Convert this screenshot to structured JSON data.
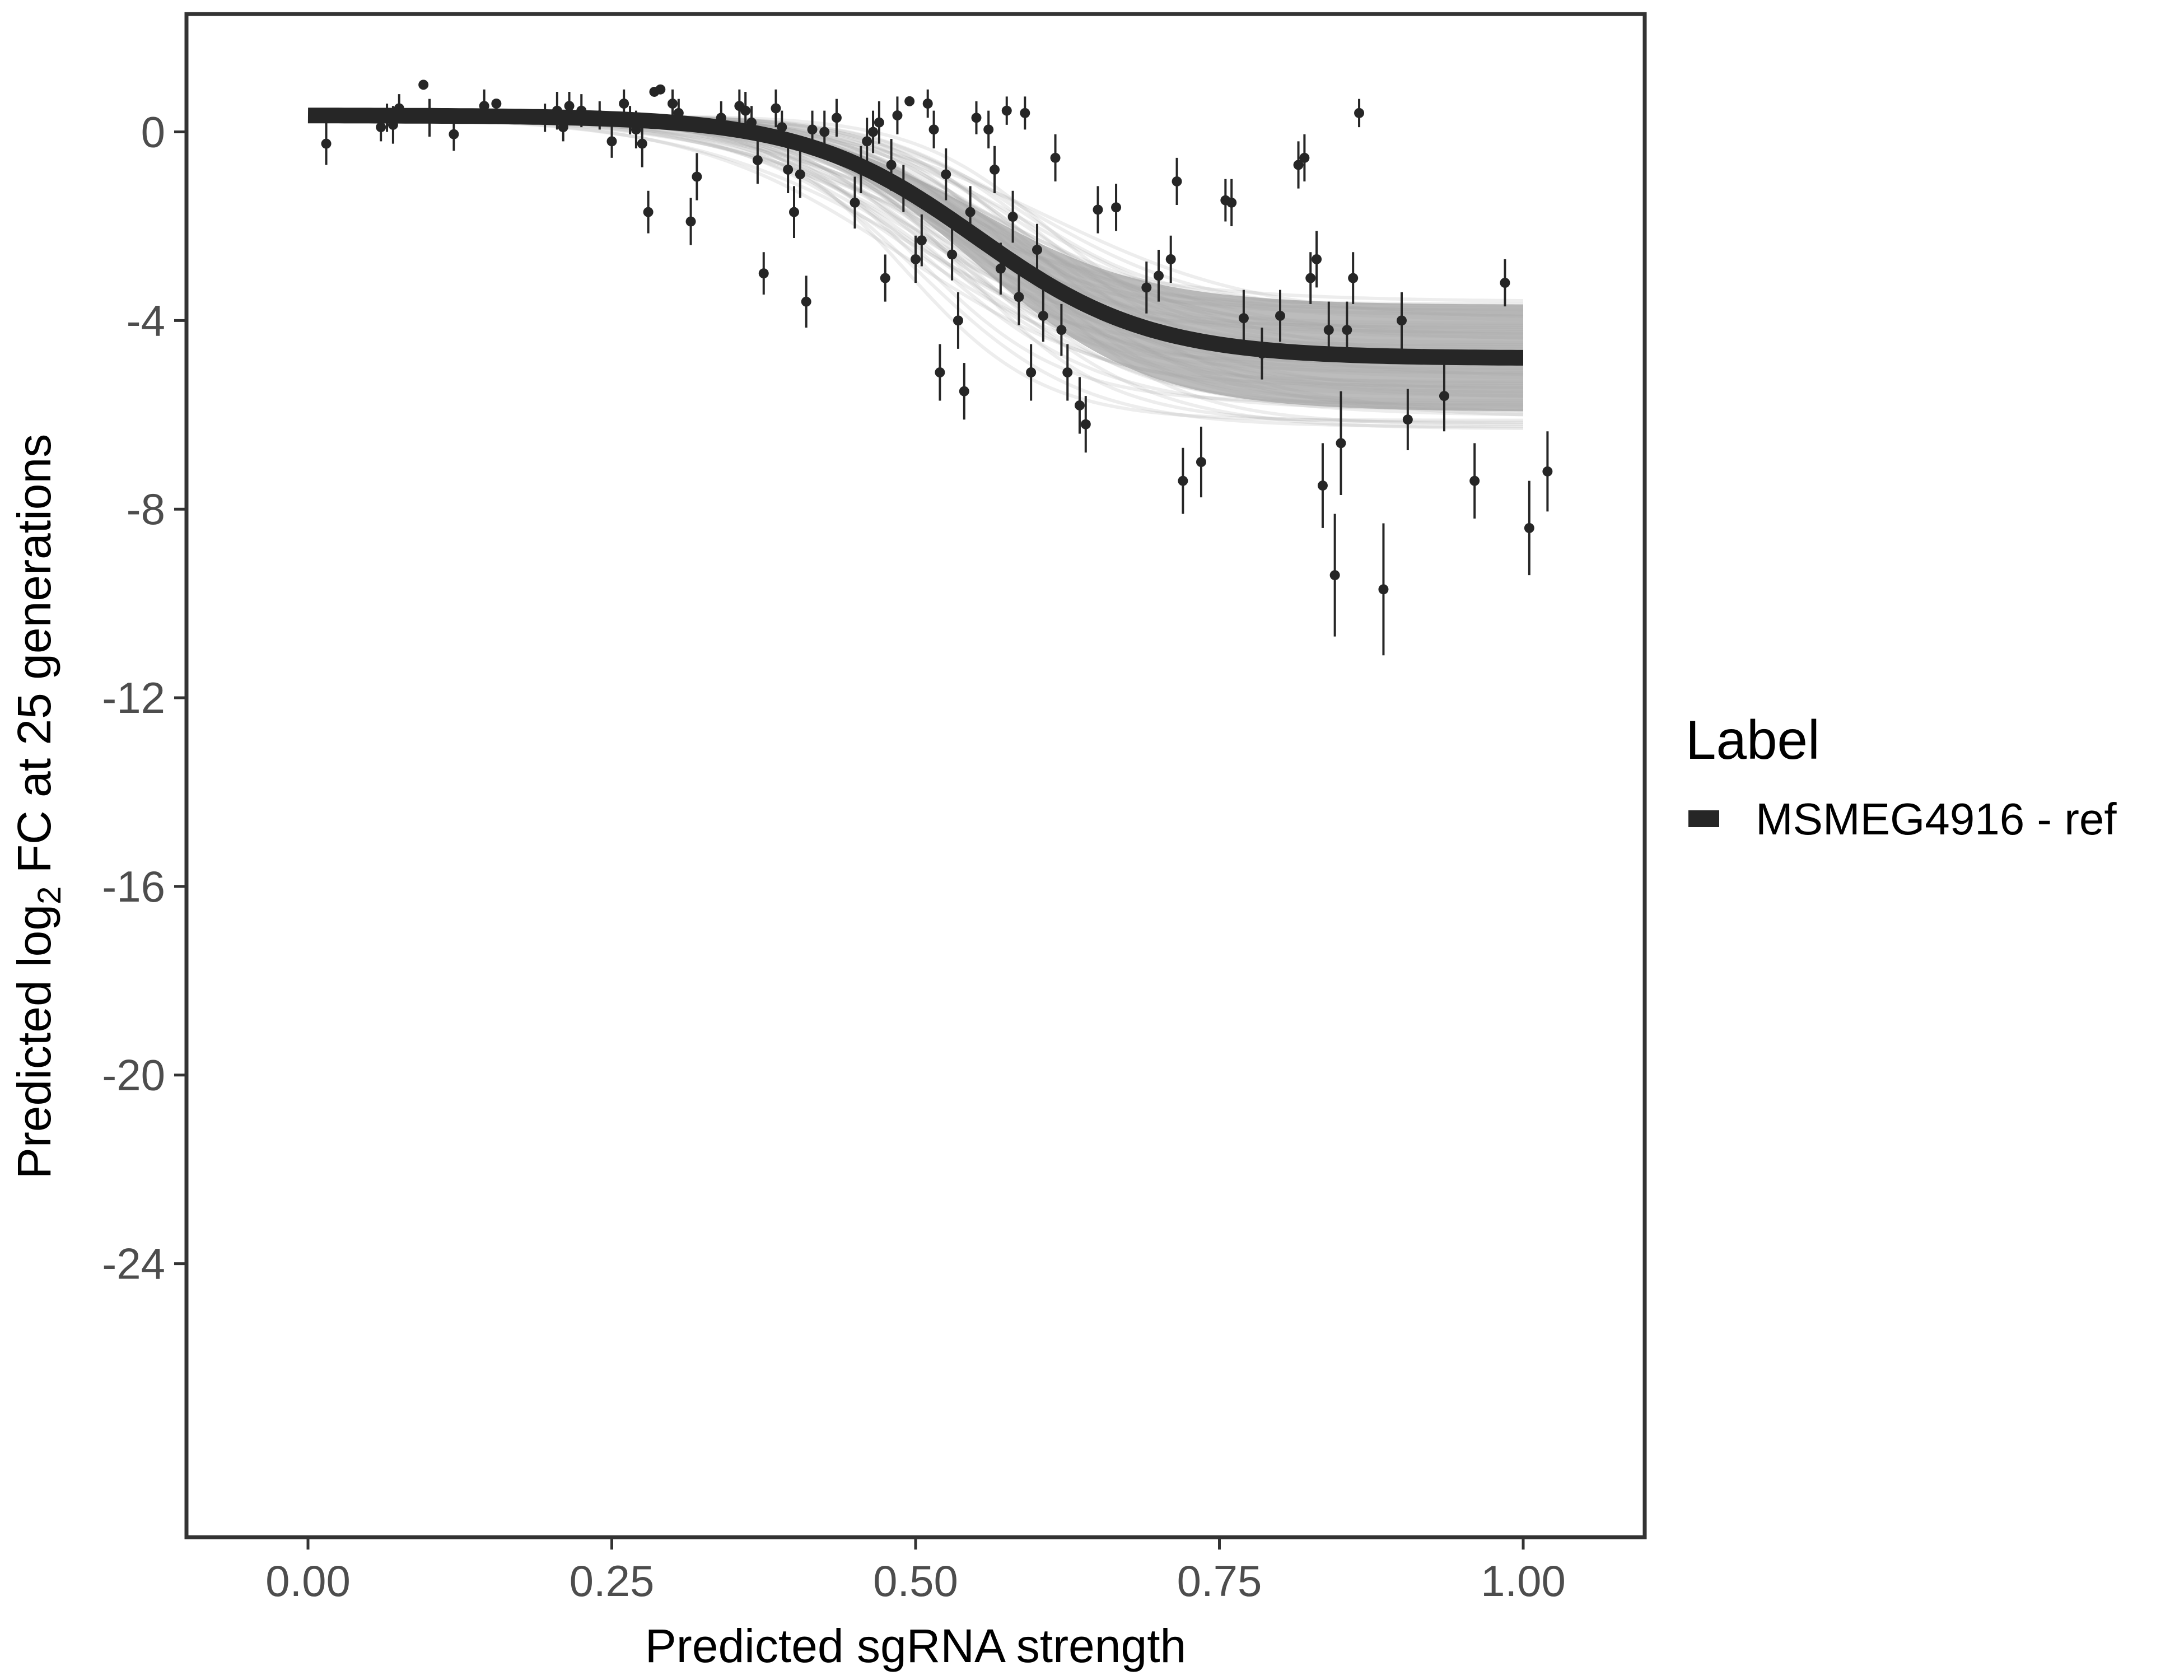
{
  "chart_data": {
    "type": "scatter",
    "xlabel": "Predicted sgRNA strength",
    "ylabel": {
      "prefix": "Predicted  log",
      "subscript": "2",
      "suffix": " FC at 25 generations"
    },
    "xlim": [
      -0.1,
      1.1
    ],
    "ylim": [
      -29.8,
      2.5
    ],
    "x_ticks": [
      {
        "value": 0.0,
        "label": "0.00"
      },
      {
        "value": 0.25,
        "label": "0.25"
      },
      {
        "value": 0.5,
        "label": "0.50"
      },
      {
        "value": 0.75,
        "label": "0.75"
      },
      {
        "value": 1.0,
        "label": "1.00"
      }
    ],
    "y_ticks": [
      {
        "value": 0,
        "label": "0"
      },
      {
        "value": -4,
        "label": "-4"
      },
      {
        "value": -8,
        "label": "-8"
      },
      {
        "value": -12,
        "label": "-12"
      },
      {
        "value": -16,
        "label": "-16"
      },
      {
        "value": -20,
        "label": "-20"
      },
      {
        "value": -24,
        "label": "-24"
      }
    ],
    "grid": false,
    "legend": {
      "title": "Label",
      "position": "right",
      "entries": [
        {
          "label": "MSMEG4916 - ref",
          "color": "#262626"
        }
      ]
    },
    "fit_curve": {
      "name": "MSMEG4916 - ref",
      "model": "logistic",
      "upper": 0.35,
      "lower": -4.8,
      "midpoint": 0.55,
      "slope": 14,
      "x_range": [
        0.0,
        1.0
      ],
      "band_upper": -3.6,
      "band_lower": -6.3
    },
    "points": [
      {
        "x": 0.015,
        "y": -0.25,
        "err": 0.45
      },
      {
        "x": 0.06,
        "y": 0.1,
        "err": 0.3
      },
      {
        "x": 0.065,
        "y": 0.3,
        "err": 0.3
      },
      {
        "x": 0.07,
        "y": 0.15,
        "err": 0.4
      },
      {
        "x": 0.075,
        "y": 0.5,
        "err": 0.3
      },
      {
        "x": 0.095,
        "y": 1.0,
        "err": 0.1
      },
      {
        "x": 0.1,
        "y": 0.3,
        "err": 0.4
      },
      {
        "x": 0.12,
        "y": -0.05,
        "err": 0.35
      },
      {
        "x": 0.145,
        "y": 0.55,
        "err": 0.35
      },
      {
        "x": 0.155,
        "y": 0.6,
        "err": 0.1
      },
      {
        "x": 0.195,
        "y": 0.3,
        "err": 0.3
      },
      {
        "x": 0.205,
        "y": 0.45,
        "err": 0.4
      },
      {
        "x": 0.21,
        "y": 0.1,
        "err": 0.3
      },
      {
        "x": 0.215,
        "y": 0.55,
        "err": 0.3
      },
      {
        "x": 0.225,
        "y": 0.45,
        "err": 0.35
      },
      {
        "x": 0.24,
        "y": 0.35,
        "err": 0.3
      },
      {
        "x": 0.25,
        "y": -0.2,
        "err": 0.35
      },
      {
        "x": 0.26,
        "y": 0.6,
        "err": 0.3
      },
      {
        "x": 0.265,
        "y": 0.25,
        "err": 0.3
      },
      {
        "x": 0.27,
        "y": 0.05,
        "err": 0.4
      },
      {
        "x": 0.275,
        "y": -0.25,
        "err": 0.5
      },
      {
        "x": 0.28,
        "y": -1.7,
        "err": 0.45
      },
      {
        "x": 0.285,
        "y": 0.85,
        "err": 0.1
      },
      {
        "x": 0.29,
        "y": 0.9,
        "err": 0.1
      },
      {
        "x": 0.3,
        "y": 0.6,
        "err": 0.3
      },
      {
        "x": 0.305,
        "y": 0.4,
        "err": 0.3
      },
      {
        "x": 0.315,
        "y": -1.9,
        "err": 0.5
      },
      {
        "x": 0.32,
        "y": -0.95,
        "err": 0.5
      },
      {
        "x": 0.34,
        "y": 0.3,
        "err": 0.35
      },
      {
        "x": 0.355,
        "y": 0.55,
        "err": 0.35
      },
      {
        "x": 0.36,
        "y": 0.45,
        "err": 0.4
      },
      {
        "x": 0.365,
        "y": 0.2,
        "err": 0.35
      },
      {
        "x": 0.37,
        "y": -0.6,
        "err": 0.5
      },
      {
        "x": 0.375,
        "y": -3.0,
        "err": 0.45
      },
      {
        "x": 0.385,
        "y": 0.5,
        "err": 0.4
      },
      {
        "x": 0.39,
        "y": 0.1,
        "err": 0.35
      },
      {
        "x": 0.395,
        "y": -0.8,
        "err": 0.5
      },
      {
        "x": 0.4,
        "y": -1.7,
        "err": 0.55
      },
      {
        "x": 0.405,
        "y": -0.9,
        "err": 0.5
      },
      {
        "x": 0.41,
        "y": -3.6,
        "err": 0.55
      },
      {
        "x": 0.415,
        "y": 0.05,
        "err": 0.4
      },
      {
        "x": 0.425,
        "y": 0.0,
        "err": 0.45
      },
      {
        "x": 0.435,
        "y": 0.3,
        "err": 0.4
      },
      {
        "x": 0.45,
        "y": -1.5,
        "err": 0.55
      },
      {
        "x": 0.455,
        "y": -0.8,
        "err": 0.5
      },
      {
        "x": 0.46,
        "y": -0.2,
        "err": 0.5
      },
      {
        "x": 0.465,
        "y": 0.0,
        "err": 0.45
      },
      {
        "x": 0.47,
        "y": 0.2,
        "err": 0.45
      },
      {
        "x": 0.475,
        "y": -3.1,
        "err": 0.5
      },
      {
        "x": 0.48,
        "y": -0.7,
        "err": 0.55
      },
      {
        "x": 0.485,
        "y": 0.35,
        "err": 0.4
      },
      {
        "x": 0.49,
        "y": -1.2,
        "err": 0.5
      },
      {
        "x": 0.495,
        "y": 0.65,
        "err": 0.1
      },
      {
        "x": 0.5,
        "y": -2.7,
        "err": 0.5
      },
      {
        "x": 0.505,
        "y": -2.3,
        "err": 0.55
      },
      {
        "x": 0.51,
        "y": 0.6,
        "err": 0.3
      },
      {
        "x": 0.515,
        "y": 0.05,
        "err": 0.4
      },
      {
        "x": 0.52,
        "y": -5.1,
        "err": 0.6
      },
      {
        "x": 0.525,
        "y": -0.9,
        "err": 0.55
      },
      {
        "x": 0.53,
        "y": -2.6,
        "err": 0.55
      },
      {
        "x": 0.535,
        "y": -4.0,
        "err": 0.6
      },
      {
        "x": 0.54,
        "y": -5.5,
        "err": 0.6
      },
      {
        "x": 0.545,
        "y": -1.7,
        "err": 0.55
      },
      {
        "x": 0.55,
        "y": 0.3,
        "err": 0.35
      },
      {
        "x": 0.56,
        "y": 0.05,
        "err": 0.4
      },
      {
        "x": 0.565,
        "y": -0.8,
        "err": 0.5
      },
      {
        "x": 0.57,
        "y": -2.9,
        "err": 0.55
      },
      {
        "x": 0.575,
        "y": 0.45,
        "err": 0.3
      },
      {
        "x": 0.58,
        "y": -1.8,
        "err": 0.55
      },
      {
        "x": 0.585,
        "y": -3.5,
        "err": 0.6
      },
      {
        "x": 0.59,
        "y": 0.4,
        "err": 0.35
      },
      {
        "x": 0.595,
        "y": -5.1,
        "err": 0.6
      },
      {
        "x": 0.6,
        "y": -2.5,
        "err": 0.55
      },
      {
        "x": 0.605,
        "y": -3.9,
        "err": 0.55
      },
      {
        "x": 0.615,
        "y": -0.55,
        "err": 0.5
      },
      {
        "x": 0.62,
        "y": -4.2,
        "err": 0.55
      },
      {
        "x": 0.625,
        "y": -5.1,
        "err": 0.6
      },
      {
        "x": 0.635,
        "y": -5.8,
        "err": 0.6
      },
      {
        "x": 0.64,
        "y": -6.2,
        "err": 0.6
      },
      {
        "x": 0.65,
        "y": -1.65,
        "err": 0.5
      },
      {
        "x": 0.665,
        "y": -1.6,
        "err": 0.5
      },
      {
        "x": 0.69,
        "y": -3.3,
        "err": 0.55
      },
      {
        "x": 0.7,
        "y": -3.05,
        "err": 0.55
      },
      {
        "x": 0.71,
        "y": -2.7,
        "err": 0.5
      },
      {
        "x": 0.715,
        "y": -1.05,
        "err": 0.5
      },
      {
        "x": 0.72,
        "y": -7.4,
        "err": 0.7
      },
      {
        "x": 0.735,
        "y": -7.0,
        "err": 0.75
      },
      {
        "x": 0.755,
        "y": -1.45,
        "err": 0.45
      },
      {
        "x": 0.76,
        "y": -1.5,
        "err": 0.5
      },
      {
        "x": 0.77,
        "y": -3.95,
        "err": 0.6
      },
      {
        "x": 0.785,
        "y": -4.7,
        "err": 0.55
      },
      {
        "x": 0.8,
        "y": -3.9,
        "err": 0.55
      },
      {
        "x": 0.815,
        "y": -0.7,
        "err": 0.5
      },
      {
        "x": 0.82,
        "y": -0.55,
        "err": 0.5
      },
      {
        "x": 0.825,
        "y": -3.1,
        "err": 0.55
      },
      {
        "x": 0.83,
        "y": -2.7,
        "err": 0.6
      },
      {
        "x": 0.835,
        "y": -7.5,
        "err": 0.9
      },
      {
        "x": 0.84,
        "y": -4.2,
        "err": 0.6
      },
      {
        "x": 0.845,
        "y": -9.4,
        "err": 1.3
      },
      {
        "x": 0.85,
        "y": -6.6,
        "err": 1.1
      },
      {
        "x": 0.855,
        "y": -4.2,
        "err": 0.6
      },
      {
        "x": 0.86,
        "y": -3.1,
        "err": 0.55
      },
      {
        "x": 0.865,
        "y": 0.4,
        "err": 0.3
      },
      {
        "x": 0.885,
        "y": -9.7,
        "err": 1.4
      },
      {
        "x": 0.9,
        "y": -4.0,
        "err": 0.6
      },
      {
        "x": 0.905,
        "y": -6.1,
        "err": 0.65
      },
      {
        "x": 0.935,
        "y": -5.6,
        "err": 0.75
      },
      {
        "x": 0.96,
        "y": -7.4,
        "err": 0.8
      },
      {
        "x": 0.985,
        "y": -3.2,
        "err": 0.5
      },
      {
        "x": 1.005,
        "y": -8.4,
        "err": 1.0
      },
      {
        "x": 1.02,
        "y": -7.2,
        "err": 0.85
      }
    ]
  }
}
